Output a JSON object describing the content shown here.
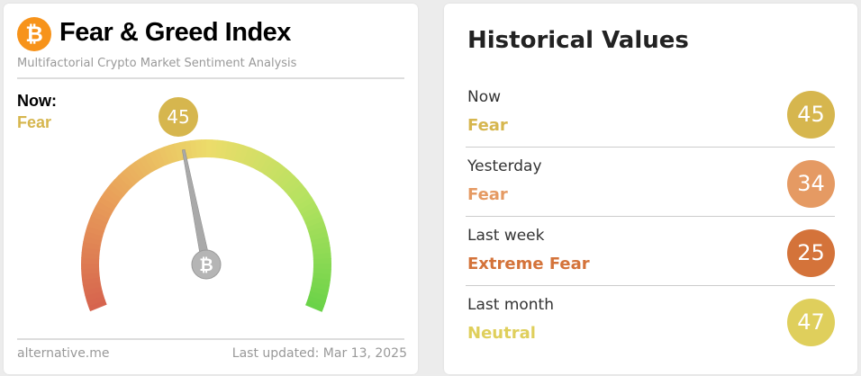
{
  "widget": {
    "title": "Fear & Greed Index",
    "subtitle": "Multifactorial Crypto Market Sentiment Analysis",
    "now_label": "Now:",
    "now_classification": "Fear",
    "value": 45,
    "value_text": "45",
    "gauge_min": 0,
    "gauge_max": 100,
    "source": "alternative.me",
    "last_updated": "Last updated: Mar 13, 2025",
    "icon": "bitcoin-icon",
    "accent": "#d6b64e"
  },
  "historical": {
    "title": "Historical Values",
    "rows": [
      {
        "label": "Now",
        "classification": "Fear",
        "value": "45",
        "color": "#d6b64e"
      },
      {
        "label": "Yesterday",
        "classification": "Fear",
        "value": "34",
        "color": "#e59a63"
      },
      {
        "label": "Last week",
        "classification": "Extreme Fear",
        "value": "25",
        "color": "#d4733a"
      },
      {
        "label": "Last month",
        "classification": "Neutral",
        "value": "47",
        "color": "#dfcf5c"
      }
    ]
  }
}
